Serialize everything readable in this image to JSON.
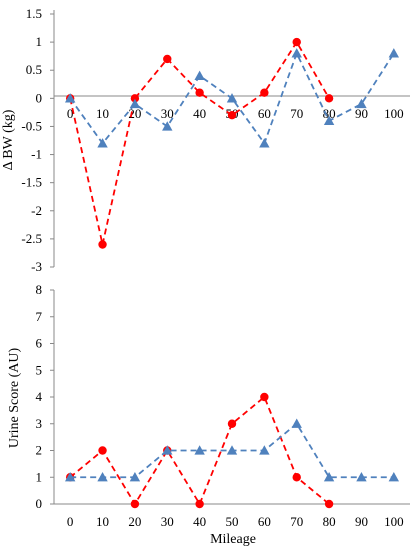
{
  "chart_data": [
    {
      "type": "line",
      "title": "",
      "xlabel": "",
      "ylabel": "Δ BW (kg)",
      "x_ticks": [
        "0",
        "10",
        "20",
        "30",
        "40",
        "50",
        "60",
        "70",
        "80",
        "90",
        "100"
      ],
      "y_ticks": [
        "1.5",
        "1",
        "0.5",
        "0",
        "-0.5",
        "-1",
        "-1.5",
        "-2",
        "-2.5",
        "-3"
      ],
      "xlim": [
        -5,
        105
      ],
      "ylim": [
        -3,
        1.5
      ],
      "grid": false,
      "series": [
        {
          "color": "#FF0000",
          "marker": "circle",
          "points": [
            [
              0,
              0
            ],
            [
              10,
              -2.6
            ],
            [
              20,
              0
            ],
            [
              30,
              0.7
            ],
            [
              40,
              0.1
            ],
            [
              50,
              -0.3
            ],
            [
              60,
              0.1
            ],
            [
              70,
              1.0
            ],
            [
              80,
              0
            ]
          ]
        },
        {
          "color": "#4F81BD",
          "marker": "triangle",
          "points": [
            [
              0,
              0
            ],
            [
              10,
              -0.8
            ],
            [
              20,
              -0.1
            ],
            [
              30,
              -0.5
            ],
            [
              40,
              0.4
            ],
            [
              50,
              0
            ],
            [
              60,
              -0.8
            ],
            [
              70,
              0.8
            ],
            [
              80,
              -0.4
            ],
            [
              90,
              -0.1
            ],
            [
              100,
              0.8
            ]
          ]
        }
      ]
    },
    {
      "type": "line",
      "title": "",
      "xlabel": "Mileage",
      "ylabel": "Urine Score (AU)",
      "x_ticks": [
        "0",
        "10",
        "20",
        "30",
        "40",
        "50",
        "60",
        "70",
        "80",
        "90",
        "100"
      ],
      "y_ticks": [
        "8",
        "7",
        "6",
        "5",
        "4",
        "3",
        "2",
        "1",
        "0"
      ],
      "xlim": [
        -5,
        105
      ],
      "ylim": [
        0,
        8
      ],
      "grid": false,
      "series": [
        {
          "color": "#FF0000",
          "marker": "circle",
          "points": [
            [
              0,
              1
            ],
            [
              10,
              2
            ],
            [
              20,
              0
            ],
            [
              30,
              2
            ],
            [
              40,
              0
            ],
            [
              50,
              3
            ],
            [
              60,
              4
            ],
            [
              70,
              1
            ],
            [
              80,
              0
            ]
          ]
        },
        {
          "color": "#4F81BD",
          "marker": "triangle",
          "points": [
            [
              0,
              1
            ],
            [
              10,
              1
            ],
            [
              20,
              1
            ],
            [
              30,
              2
            ],
            [
              40,
              2
            ],
            [
              50,
              2
            ],
            [
              60,
              2
            ],
            [
              70,
              3
            ],
            [
              80,
              1
            ],
            [
              90,
              1
            ],
            [
              100,
              1
            ]
          ]
        }
      ]
    }
  ]
}
